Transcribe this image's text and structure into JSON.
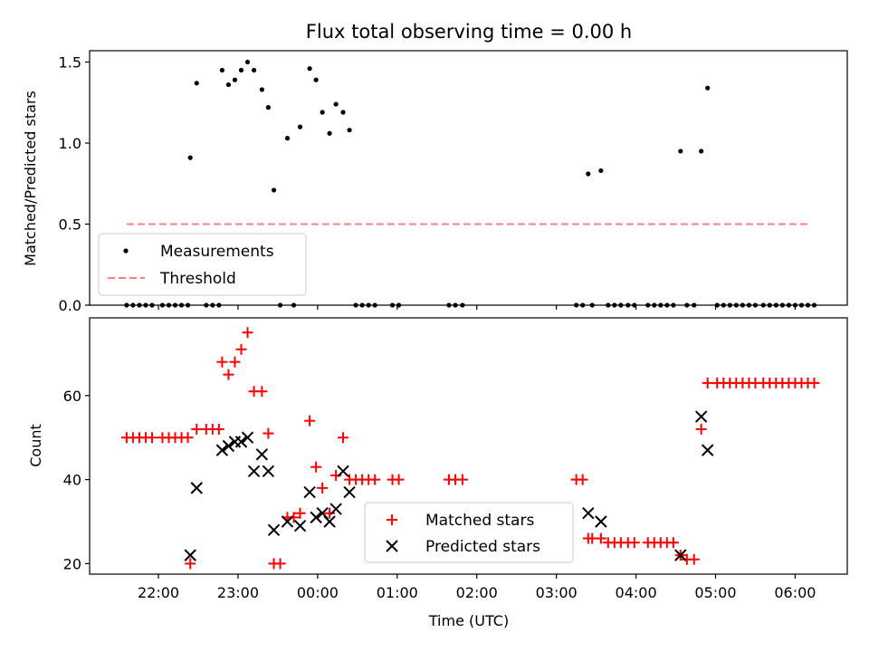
{
  "chart_data": {
    "title": "Flux total observing time = 0.00 h",
    "xlabel": "Time (UTC)",
    "x_ticks": [
      {
        "h": 22,
        "label": "22:00"
      },
      {
        "h": 23,
        "label": "23:00"
      },
      {
        "h": 24,
        "label": "00:00"
      },
      {
        "h": 25,
        "label": "01:00"
      },
      {
        "h": 26,
        "label": "02:00"
      },
      {
        "h": 27,
        "label": "03:00"
      },
      {
        "h": 28,
        "label": "04:00"
      },
      {
        "h": 29,
        "label": "05:00"
      },
      {
        "h": 30,
        "label": "06:00"
      }
    ],
    "x_note": "x values are hours after 00:00 of the first day (24 = 00:00 next day)",
    "top": {
      "type": "scatter",
      "ylabel": "Matched/Predicted stars",
      "ylim": [
        0,
        1.57
      ],
      "y_ticks": [
        {
          "v": 0.0,
          "label": "0.0"
        },
        {
          "v": 0.5,
          "label": "0.5"
        },
        {
          "v": 1.0,
          "label": "1.0"
        },
        {
          "v": 1.5,
          "label": "1.5"
        }
      ],
      "legend": [
        "Measurements",
        "Threshold"
      ],
      "legend_position": "lower-left",
      "threshold": {
        "value": 0.5,
        "x_range": [
          21.6,
          30.2
        ],
        "color": "#ff7f7f"
      },
      "measurements": [
        [
          21.6,
          0
        ],
        [
          21.68,
          0
        ],
        [
          21.76,
          0
        ],
        [
          21.84,
          0
        ],
        [
          21.92,
          0
        ],
        [
          22.05,
          0
        ],
        [
          22.13,
          0
        ],
        [
          22.21,
          0
        ],
        [
          22.29,
          0
        ],
        [
          22.37,
          0
        ],
        [
          22.4,
          0.91
        ],
        [
          22.48,
          1.37
        ],
        [
          22.6,
          0
        ],
        [
          22.68,
          0
        ],
        [
          22.76,
          0
        ],
        [
          22.8,
          1.45
        ],
        [
          22.88,
          1.36
        ],
        [
          22.96,
          1.39
        ],
        [
          23.04,
          1.45
        ],
        [
          23.12,
          1.5
        ],
        [
          23.2,
          1.45
        ],
        [
          23.3,
          1.33
        ],
        [
          23.38,
          1.22
        ],
        [
          23.45,
          0.71
        ],
        [
          23.53,
          0
        ],
        [
          23.62,
          1.03
        ],
        [
          23.7,
          0
        ],
        [
          23.78,
          1.1
        ],
        [
          23.9,
          1.46
        ],
        [
          23.98,
          1.39
        ],
        [
          24.06,
          1.19
        ],
        [
          24.15,
          1.06
        ],
        [
          24.23,
          1.24
        ],
        [
          24.32,
          1.19
        ],
        [
          24.4,
          1.08
        ],
        [
          24.48,
          0
        ],
        [
          24.56,
          0
        ],
        [
          24.64,
          0
        ],
        [
          24.72,
          0
        ],
        [
          24.94,
          0
        ],
        [
          25.02,
          0
        ],
        [
          25.65,
          0
        ],
        [
          25.73,
          0
        ],
        [
          25.82,
          0
        ],
        [
          27.25,
          0
        ],
        [
          27.33,
          0
        ],
        [
          27.4,
          0.81
        ],
        [
          27.45,
          0
        ],
        [
          27.56,
          0.83
        ],
        [
          27.65,
          0
        ],
        [
          27.73,
          0
        ],
        [
          27.81,
          0
        ],
        [
          27.9,
          0
        ],
        [
          27.98,
          0
        ],
        [
          28.15,
          0
        ],
        [
          28.23,
          0
        ],
        [
          28.31,
          0
        ],
        [
          28.39,
          0
        ],
        [
          28.47,
          0
        ],
        [
          28.56,
          0.95
        ],
        [
          28.64,
          0
        ],
        [
          28.73,
          0
        ],
        [
          28.82,
          0.95
        ],
        [
          28.9,
          1.34
        ],
        [
          29.02,
          0
        ],
        [
          29.1,
          0
        ],
        [
          29.18,
          0
        ],
        [
          29.26,
          0
        ],
        [
          29.34,
          0
        ],
        [
          29.42,
          0
        ],
        [
          29.5,
          0
        ],
        [
          29.6,
          0
        ],
        [
          29.68,
          0
        ],
        [
          29.76,
          0
        ],
        [
          29.84,
          0
        ],
        [
          29.92,
          0
        ],
        [
          30.0,
          0
        ],
        [
          30.08,
          0
        ],
        [
          30.16,
          0
        ],
        [
          30.24,
          0
        ]
      ]
    },
    "bottom": {
      "type": "scatter",
      "ylabel": "Count",
      "ylim": [
        17.5,
        78.5
      ],
      "y_ticks": [
        {
          "v": 20,
          "label": "20"
        },
        {
          "v": 40,
          "label": "40"
        },
        {
          "v": 60,
          "label": "60"
        }
      ],
      "legend_position": "lower-center",
      "series": [
        {
          "name": "Matched stars",
          "marker": "plus",
          "color": "#ff0000",
          "points": [
            [
              21.6,
              50
            ],
            [
              21.68,
              50
            ],
            [
              21.76,
              50
            ],
            [
              21.84,
              50
            ],
            [
              21.92,
              50
            ],
            [
              22.05,
              50
            ],
            [
              22.13,
              50
            ],
            [
              22.21,
              50
            ],
            [
              22.29,
              50
            ],
            [
              22.37,
              50
            ],
            [
              22.4,
              20
            ],
            [
              22.48,
              52
            ],
            [
              22.6,
              52
            ],
            [
              22.68,
              52
            ],
            [
              22.76,
              52
            ],
            [
              22.8,
              68
            ],
            [
              22.88,
              65
            ],
            [
              22.96,
              68
            ],
            [
              23.04,
              71
            ],
            [
              23.12,
              75
            ],
            [
              23.2,
              61
            ],
            [
              23.3,
              61
            ],
            [
              23.38,
              51
            ],
            [
              23.45,
              20
            ],
            [
              23.53,
              20
            ],
            [
              23.62,
              31
            ],
            [
              23.7,
              31
            ],
            [
              23.78,
              32
            ],
            [
              23.9,
              54
            ],
            [
              23.98,
              43
            ],
            [
              24.06,
              38
            ],
            [
              24.15,
              32
            ],
            [
              24.23,
              41
            ],
            [
              24.32,
              50
            ],
            [
              24.4,
              40
            ],
            [
              24.48,
              40
            ],
            [
              24.56,
              40
            ],
            [
              24.64,
              40
            ],
            [
              24.72,
              40
            ],
            [
              24.94,
              40
            ],
            [
              25.02,
              40
            ],
            [
              25.65,
              40
            ],
            [
              25.73,
              40
            ],
            [
              25.82,
              40
            ],
            [
              27.25,
              40
            ],
            [
              27.33,
              40
            ],
            [
              27.4,
              26
            ],
            [
              27.45,
              26
            ],
            [
              27.56,
              26
            ],
            [
              27.65,
              25
            ],
            [
              27.73,
              25
            ],
            [
              27.81,
              25
            ],
            [
              27.9,
              25
            ],
            [
              27.98,
              25
            ],
            [
              28.15,
              25
            ],
            [
              28.23,
              25
            ],
            [
              28.31,
              25
            ],
            [
              28.39,
              25
            ],
            [
              28.47,
              25
            ],
            [
              28.56,
              22
            ],
            [
              28.64,
              21
            ],
            [
              28.73,
              21
            ],
            [
              28.82,
              52
            ],
            [
              28.9,
              63
            ],
            [
              29.02,
              63
            ],
            [
              29.1,
              63
            ],
            [
              29.18,
              63
            ],
            [
              29.26,
              63
            ],
            [
              29.34,
              63
            ],
            [
              29.42,
              63
            ],
            [
              29.5,
              63
            ],
            [
              29.6,
              63
            ],
            [
              29.68,
              63
            ],
            [
              29.76,
              63
            ],
            [
              29.84,
              63
            ],
            [
              29.92,
              63
            ],
            [
              30.0,
              63
            ],
            [
              30.08,
              63
            ],
            [
              30.16,
              63
            ],
            [
              30.24,
              63
            ]
          ]
        },
        {
          "name": "Predicted stars",
          "marker": "x",
          "color": "#000000",
          "points": [
            [
              22.4,
              22
            ],
            [
              22.48,
              38
            ],
            [
              22.8,
              47
            ],
            [
              22.88,
              48
            ],
            [
              22.96,
              49
            ],
            [
              23.04,
              49
            ],
            [
              23.12,
              50
            ],
            [
              23.2,
              42
            ],
            [
              23.3,
              46
            ],
            [
              23.38,
              42
            ],
            [
              23.45,
              28
            ],
            [
              23.62,
              30
            ],
            [
              23.78,
              29
            ],
            [
              23.9,
              37
            ],
            [
              23.98,
              31
            ],
            [
              24.06,
              32
            ],
            [
              24.15,
              30
            ],
            [
              24.23,
              33
            ],
            [
              24.32,
              42
            ],
            [
              24.4,
              37
            ],
            [
              27.4,
              32
            ],
            [
              27.56,
              30
            ],
            [
              28.56,
              22
            ],
            [
              28.82,
              55
            ],
            [
              28.9,
              47
            ]
          ]
        }
      ]
    }
  }
}
